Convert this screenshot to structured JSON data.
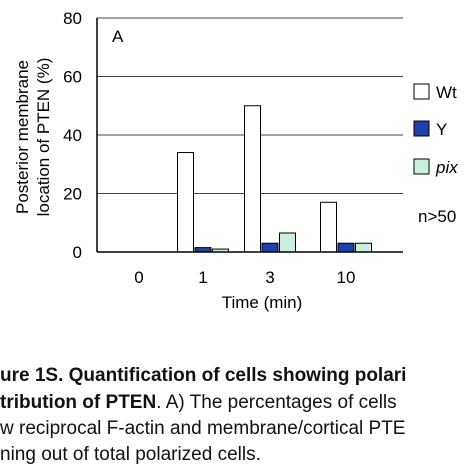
{
  "chart_data": {
    "type": "bar",
    "panel_label": "A",
    "categories": [
      "0",
      "1",
      "3",
      "10"
    ],
    "series": [
      {
        "name": "Wt",
        "values": [
          0,
          34,
          50,
          17
        ],
        "fill": "#ffffff"
      },
      {
        "name": "Y",
        "values": [
          0,
          1.5,
          3,
          3
        ],
        "fill": "#1f3fae"
      },
      {
        "name": "pix",
        "values": [
          0,
          1,
          6.5,
          3
        ],
        "fill": "#c8f0dc"
      }
    ],
    "ylim": [
      0,
      80
    ],
    "yticks": [
      "0",
      "20",
      "40",
      "60",
      "80"
    ],
    "xlabel": "Time (min)",
    "ylabel_line1": "Posterior membrane",
    "ylabel_line2": "location of PTEN (%)",
    "annotation": "n>50",
    "grid": true,
    "legend_position": "right"
  },
  "caption": {
    "line1_bold": "ure 1S. Quantification of cells showing polari",
    "line2_bold": "tribution of PTEN",
    "line2_rest": ". A)  The percentages of cells",
    "line3": "w reciprocal F-actin and membrane/cortical PTE",
    "line4": "ning out of total polarized cells."
  }
}
